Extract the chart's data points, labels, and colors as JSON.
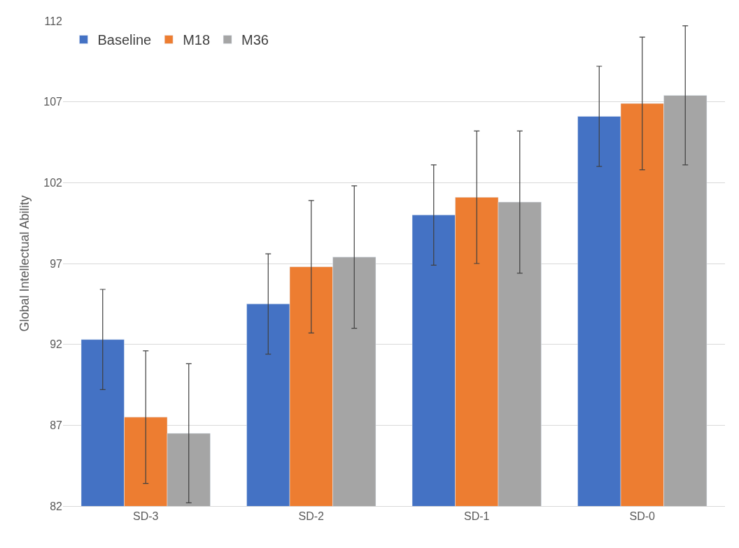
{
  "chart_data": {
    "type": "bar",
    "ylabel": "Global Intellectual Ability",
    "categories": [
      "SD-3",
      "SD-2",
      "SD-1",
      "SD-0"
    ],
    "series": [
      {
        "name": "Baseline",
        "color": "#4472c4",
        "values": [
          92.3,
          94.5,
          100.0,
          106.1
        ],
        "errors": [
          3.1,
          3.1,
          3.1,
          3.1
        ]
      },
      {
        "name": "M18",
        "color": "#ed7d31",
        "values": [
          87.5,
          96.8,
          101.1,
          106.9
        ],
        "errors": [
          4.1,
          4.1,
          4.1,
          4.1
        ]
      },
      {
        "name": "M36",
        "color": "#a5a5a5",
        "values": [
          86.5,
          97.4,
          100.8,
          107.4
        ],
        "errors": [
          4.3,
          4.4,
          4.4,
          4.3
        ]
      }
    ],
    "ylim": [
      82,
      112
    ],
    "yticks": [
      82,
      87,
      92,
      97,
      102,
      107,
      112
    ],
    "grid": "y",
    "legend": "top left"
  }
}
